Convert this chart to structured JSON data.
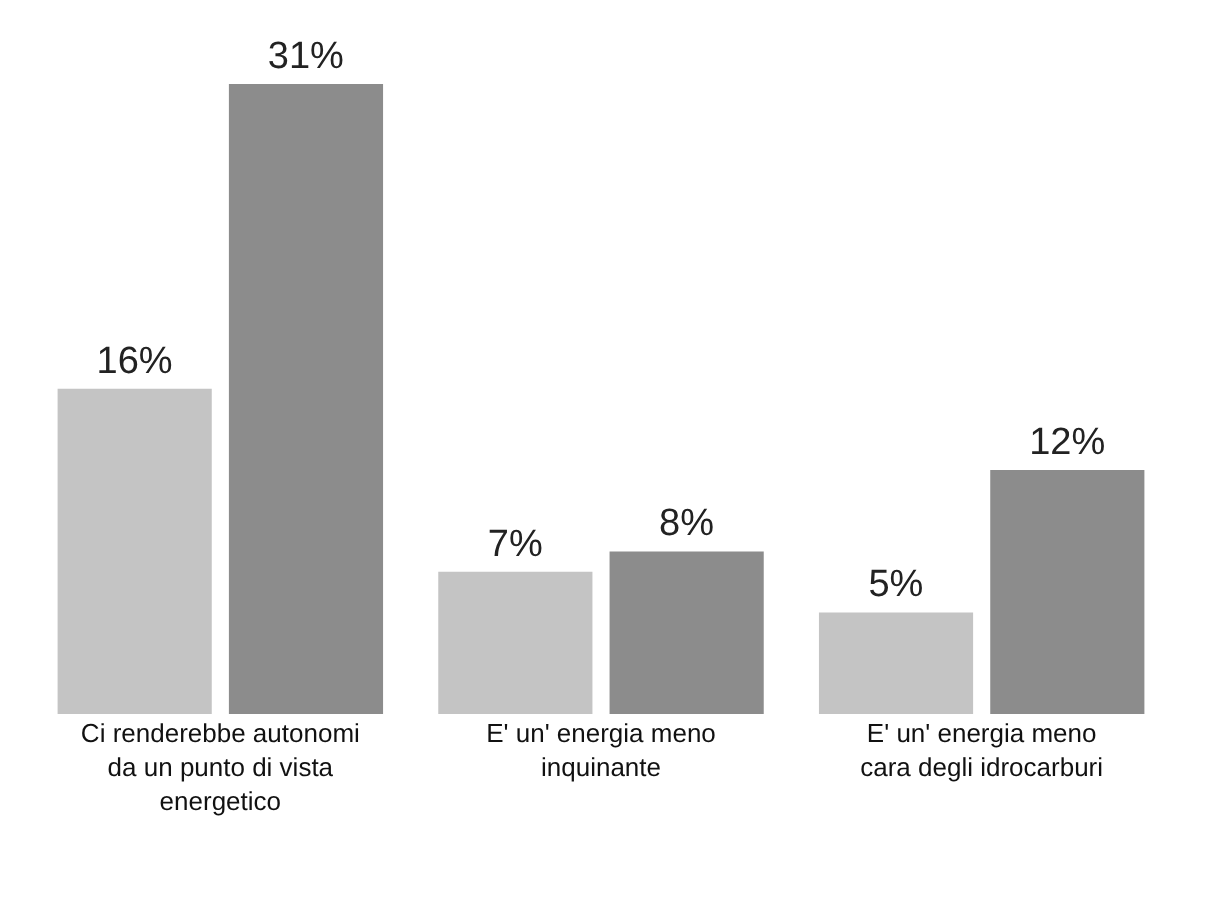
{
  "chart_data": {
    "type": "bar",
    "categories": [
      "Ci renderebbe autonomi da un punto di vista energetico",
      "E' un' energia meno inquinante",
      "E' un' energia meno cara degli idrocarburi"
    ],
    "series": [
      {
        "color": "#c4c4c4",
        "values": [
          16,
          7,
          5
        ],
        "value_labels": [
          "16%",
          "7%",
          "5%"
        ]
      },
      {
        "color": "#8c8c8c",
        "values": [
          31,
          8,
          12
        ],
        "value_labels": [
          "31%",
          "8%",
          "12%"
        ]
      }
    ]
  }
}
